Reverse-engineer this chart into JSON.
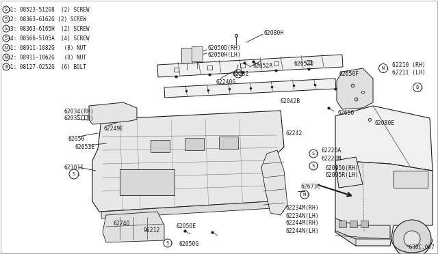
{
  "bg_color": "#ffffff",
  "line_color": "#1a1a1a",
  "fig_width": 6.4,
  "fig_height": 3.72,
  "footnote": "^630C.007",
  "legend": [
    {
      "sym": "S",
      "num": "1",
      "text": ": 08523-51208  (2) SCREW"
    },
    {
      "sym": "S",
      "num": "2",
      "text": ": 08363-6162G (2) SCREW"
    },
    {
      "sym": "S",
      "num": "3",
      "text": ": 08363-6165H  (2) SCREW"
    },
    {
      "sym": "S",
      "num": "4",
      "text": ": 08566-5105A  (4) SCREW"
    },
    {
      "sym": "N",
      "num": "1",
      "text": ": 08911-1082G   (8) NUT"
    },
    {
      "sym": "N",
      "num": "2",
      "text": ": 08911-1062G   (8) NUT"
    },
    {
      "sym": "B",
      "num": "1",
      "text": ": 08127-0252G  (6) BOLT"
    }
  ]
}
